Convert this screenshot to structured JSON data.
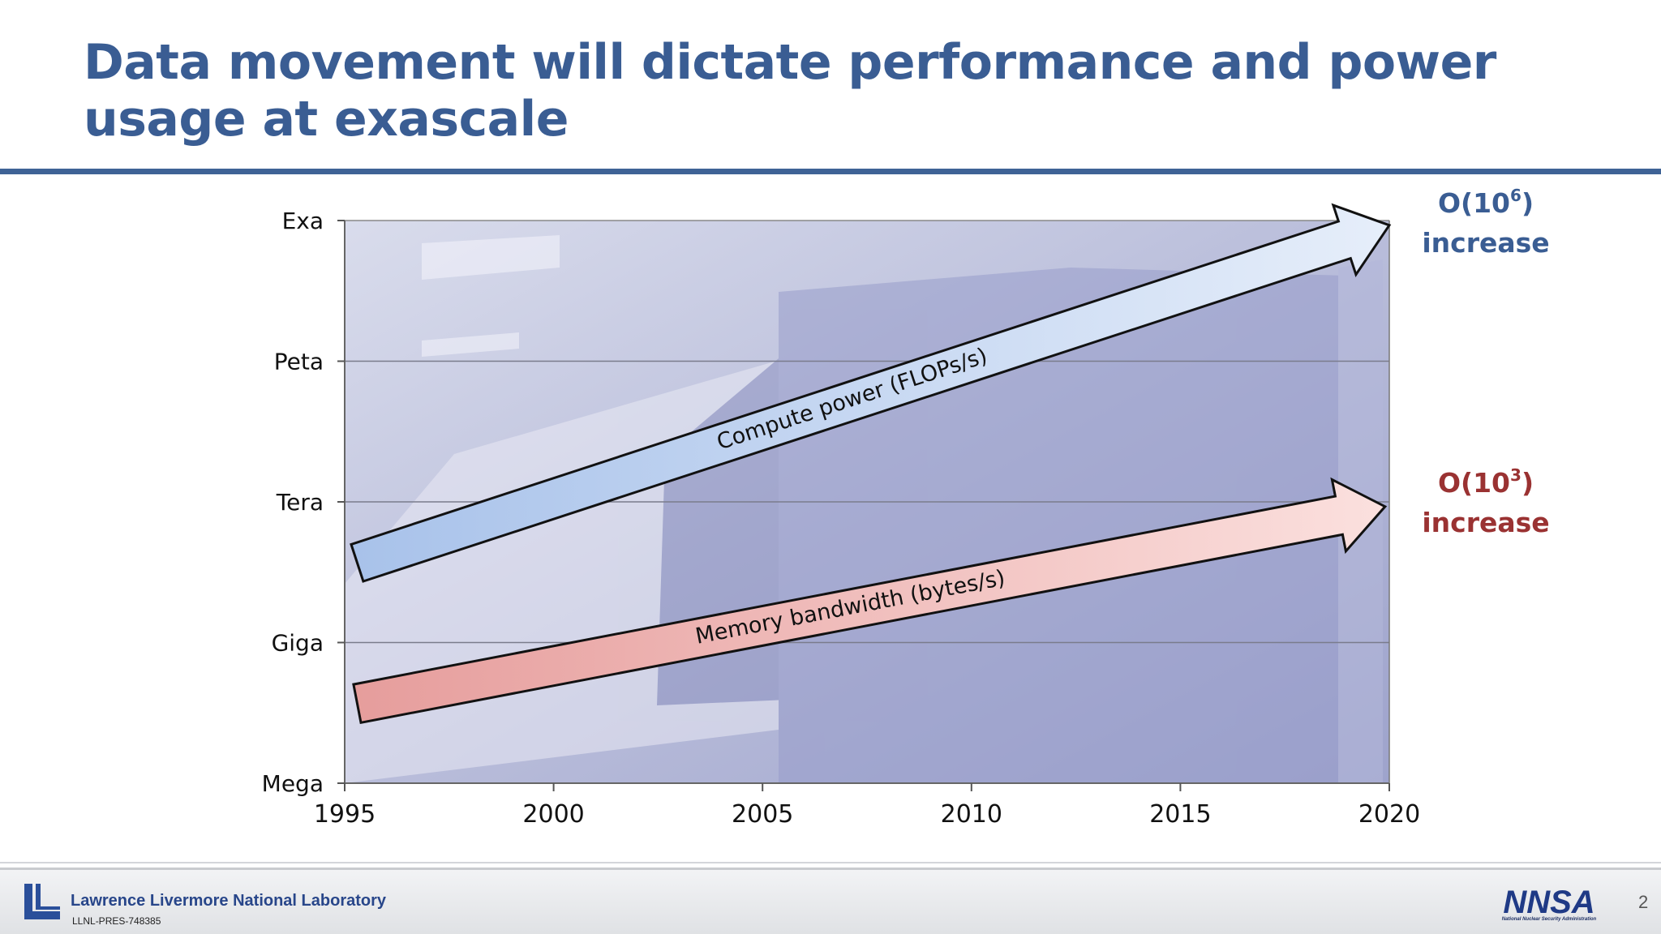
{
  "slide": {
    "title": "Data movement will dictate performance and power usage at exascale",
    "page_number": "2"
  },
  "footer": {
    "lab_name": "Lawrence Livermore National Laboratory",
    "lab_code": "LLNL-PRES-748385",
    "nnsa_logo_text": "NNSA",
    "nnsa_subtitle": "National Nuclear Security Administration"
  },
  "colors": {
    "title": "#3a5d93",
    "compute_arrow": "#c5d6ef",
    "memory_arrow": "#f0b8b6",
    "compute_annotation": "#3a5d93",
    "memory_annotation": "#9a3232",
    "plot_background": "#a9add0"
  },
  "chart_data": {
    "type": "line",
    "title": "",
    "xlabel": "",
    "ylabel": "",
    "x_ticks": [
      1995,
      2000,
      2005,
      2010,
      2015,
      2020
    ],
    "xlim": [
      1995,
      2020
    ],
    "y_ticks": [
      "Mega",
      "Giga",
      "Tera",
      "Peta",
      "Exa"
    ],
    "y_scale": "log10",
    "y_tick_exponents": [
      6,
      9,
      12,
      15,
      18
    ],
    "ylim_exponent": [
      6,
      18
    ],
    "grid": true,
    "background_image": "IBM Blue Gene/P supercomputer racks",
    "series": [
      {
        "name": "Compute power (FLOPs/s)",
        "style": "arrow",
        "color": "#c5d6ef",
        "start": {
          "x": 1995.3,
          "y_exponent": 10.7
        },
        "end": {
          "x": 2020,
          "y_exponent": 17.9
        },
        "annotation": {
          "line1_base": "O(10",
          "line1_sup": "6",
          "line1_end": ")",
          "line2": "increase",
          "color": "#3a5d93"
        }
      },
      {
        "name": "Memory bandwidth (bytes/s)",
        "style": "arrow",
        "color": "#f0b8b6",
        "start": {
          "x": 1995.3,
          "y_exponent": 7.7
        },
        "end": {
          "x": 2019.9,
          "y_exponent": 11.9
        },
        "annotation": {
          "line1_base": "O(10",
          "line1_sup": "3",
          "line1_end": ")",
          "line2": "increase",
          "color": "#9a3232"
        }
      }
    ]
  }
}
